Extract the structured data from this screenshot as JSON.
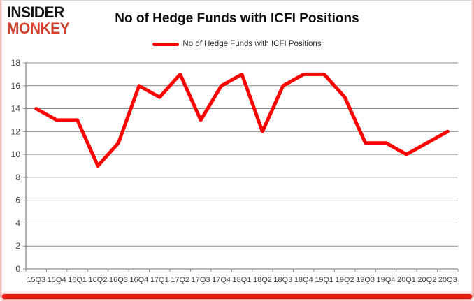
{
  "logo": {
    "line1": "INSIDER",
    "line2": "MONKEY"
  },
  "header": {
    "title": "No of Hedge Funds with ICFI Positions"
  },
  "legend": {
    "label": "No of Hedge Funds with ICFI Positions"
  },
  "colors": {
    "series_line": "#ff0000",
    "grid": "#8c8c8c",
    "axis": "#8c8c8c",
    "tick_text": "#3f3f3f",
    "logo_black": "#111111",
    "logo_red": "#d2402e",
    "bottom_bar_red": "#ec1c13",
    "side_border_pink": "#eda8a2"
  },
  "chart_data": {
    "type": "line",
    "title": "No of Hedge Funds with ICFI Positions",
    "categories": [
      "15Q3",
      "15Q4",
      "16Q1",
      "16Q2",
      "16Q3",
      "16Q4",
      "17Q1",
      "17Q2",
      "17Q3",
      "17Q4",
      "18Q1",
      "18Q2",
      "18Q3",
      "18Q4",
      "19Q1",
      "19Q2",
      "19Q3",
      "19Q4",
      "20Q1",
      "20Q2",
      "20Q3"
    ],
    "series": [
      {
        "name": "No of Hedge Funds with ICFI Positions",
        "color": "#ff0000",
        "values": [
          14,
          13,
          13,
          9,
          11,
          16,
          15,
          17,
          13,
          16,
          17,
          12,
          16,
          17,
          17,
          15,
          11,
          11,
          10,
          11,
          12
        ]
      }
    ],
    "xlabel": "",
    "ylabel": "",
    "ylim": [
      0,
      18
    ],
    "ytick_step": 2,
    "ytick_labels": [
      "0",
      "2",
      "4",
      "6",
      "8",
      "10",
      "12",
      "14",
      "16",
      "18"
    ],
    "grid": true,
    "legend_position": "top-center"
  }
}
